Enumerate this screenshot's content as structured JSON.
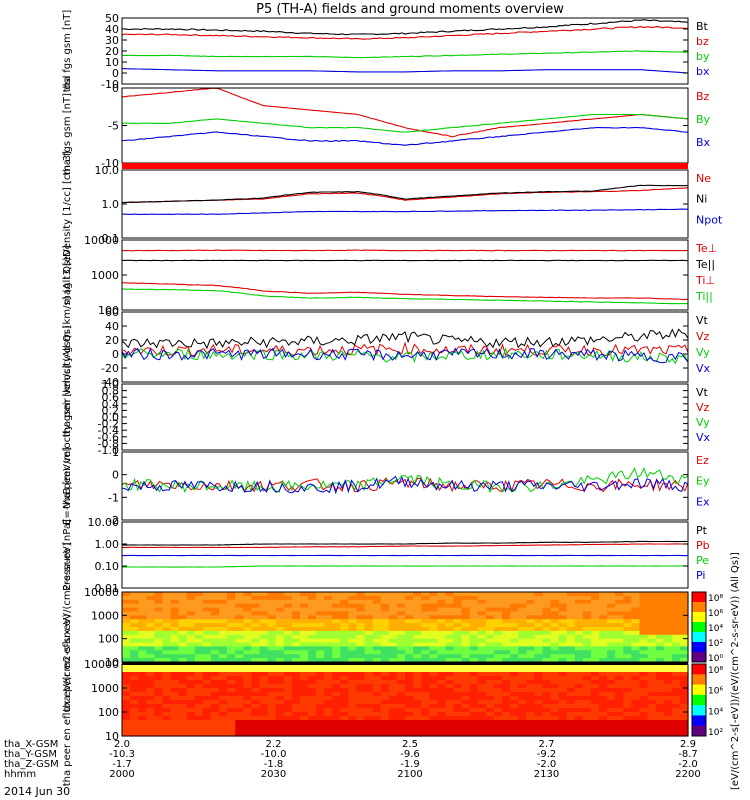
{
  "title": "P5 (TH-A) fields and ground moments overview",
  "colors": {
    "black": "#000000",
    "red": "#e00000",
    "green": "#00d000",
    "blue": "#0000e0"
  },
  "x_axis": {
    "rows": [
      {
        "label": "tha_X-GSM",
        "values": [
          "2.0",
          "2.2",
          "2.5",
          "2.7",
          "2.9"
        ]
      },
      {
        "label": "tha_Y-GSM",
        "values": [
          "-10.3",
          "-10.0",
          "-9.6",
          "-9.2",
          "-8.7"
        ]
      },
      {
        "label": "tha_Z-GSM",
        "values": [
          "-1.7",
          "-1.8",
          "-1.9",
          "-2.0",
          "-2.0"
        ]
      },
      {
        "label": "hhmm",
        "values": [
          "2000",
          "2030",
          "2100",
          "2130",
          "2200"
        ]
      }
    ],
    "date": "2014 Jun 30"
  },
  "colorbar_label": "[eV/(cm^2-s[-eV])/(eV/(cm^2-s-sr-eV)) (All Qs)]",
  "chart_data": [
    {
      "type": "line",
      "ylabel": "tha fgs gsm [nT]",
      "ylim": [
        -10,
        50
      ],
      "ticks": [
        "50",
        "40",
        "30",
        "20",
        "10",
        "0",
        "-10"
      ],
      "legend": [
        "Bt",
        "bz",
        "by",
        "bx"
      ],
      "series": [
        {
          "name": "Bt",
          "values": [
            40,
            40,
            39,
            38,
            36,
            35,
            36,
            38,
            40,
            42,
            45,
            48,
            46
          ]
        },
        {
          "name": "bz",
          "values": [
            35,
            35,
            34,
            33,
            32,
            31,
            32,
            34,
            36,
            38,
            40,
            42,
            41
          ]
        },
        {
          "name": "by",
          "values": [
            16,
            16,
            15,
            15,
            15,
            14,
            15,
            16,
            17,
            18,
            19,
            20,
            19
          ]
        },
        {
          "name": "bx",
          "values": [
            4,
            3,
            2,
            2,
            2,
            1,
            1,
            2,
            2,
            3,
            3,
            3,
            0
          ]
        }
      ]
    },
    {
      "type": "line",
      "ylabel": "tha fgs gsm [nT] dsl",
      "ylim": [
        -12,
        5
      ],
      "ticks": [
        "0",
        "-5",
        "-10"
      ],
      "legend": [
        "Bz",
        "By",
        "Bx"
      ],
      "series": [
        {
          "name": "Bz",
          "values": [
            3,
            4,
            5,
            1,
            0,
            -1,
            -4,
            -6,
            -4,
            -3,
            -2,
            -1,
            -2
          ]
        },
        {
          "name": "By",
          "values": [
            -3,
            -3,
            -2,
            -3,
            -4,
            -4,
            -5,
            -4,
            -3,
            -2,
            -1,
            -1,
            -2
          ]
        },
        {
          "name": "Bx",
          "values": [
            -7,
            -6,
            -5,
            -6,
            -7,
            -7,
            -8,
            -7,
            -6,
            -5,
            -4,
            -4,
            -5
          ]
        }
      ]
    },
    {
      "type": "line",
      "ylabel": "Density [1/cc] [cm-3]",
      "ylim": [
        0.1,
        10
      ],
      "log": true,
      "ticks": [
        "10.0",
        "1.0",
        "0.1"
      ],
      "legend": [
        "Ne",
        "Ni",
        "Npot"
      ],
      "series": [
        {
          "name": "Ne",
          "values": [
            1.1,
            1.2,
            1.3,
            1.4,
            2.0,
            2.1,
            1.3,
            1.6,
            2.0,
            2.2,
            2.3,
            2.5,
            3.0
          ]
        },
        {
          "name": "Ni",
          "values": [
            1.1,
            1.2,
            1.3,
            1.5,
            2.2,
            2.3,
            1.4,
            1.7,
            2.1,
            2.3,
            2.4,
            3.5,
            3.5
          ]
        },
        {
          "name": "Npot",
          "values": [
            0.5,
            0.5,
            0.5,
            0.55,
            0.6,
            0.6,
            0.6,
            0.62,
            0.64,
            0.65,
            0.66,
            0.68,
            0.7
          ]
        }
      ]
    },
    {
      "type": "line",
      "ylabel": "mag t3 [eV]",
      "ylim": [
        100,
        10000
      ],
      "log": true,
      "ticks": [
        "10000",
        "1000",
        "100"
      ],
      "legend": [
        "Te⊥",
        "Te||",
        "Ti⊥",
        "Ti||"
      ],
      "series": [
        {
          "name": "Te⊥",
          "values": [
            5000,
            5000,
            5100,
            5000,
            5000,
            5100,
            5000,
            5000,
            5000,
            5000,
            5000,
            5000,
            5000
          ]
        },
        {
          "name": "Te||",
          "values": [
            2600,
            2600,
            2600,
            2600,
            2600,
            2600,
            2600,
            2600,
            2600,
            2600,
            2600,
            2600,
            2600
          ]
        },
        {
          "name": "Ti⊥",
          "values": [
            600,
            550,
            500,
            350,
            300,
            320,
            280,
            260,
            240,
            230,
            220,
            220,
            200
          ]
        },
        {
          "name": "Ti||",
          "values": [
            400,
            380,
            360,
            250,
            220,
            230,
            210,
            200,
            190,
            180,
            170,
            160,
            150
          ]
        }
      ]
    },
    {
      "type": "line",
      "ylabel": "tha peir velocity gsm [km/s] (All Qs)",
      "ylim": [
        -40,
        60
      ],
      "ticks": [
        "60",
        "40",
        "20",
        "0",
        "-20",
        "-40"
      ],
      "legend": [
        "Vt",
        "Vz",
        "Vy",
        "Vx"
      ],
      "series": [
        {
          "name": "Vt",
          "values": [
            15,
            16,
            15,
            17,
            18,
            20,
            25,
            18,
            17,
            18,
            20,
            25,
            30
          ]
        },
        {
          "name": "Vz",
          "values": [
            5,
            5,
            6,
            5,
            6,
            6,
            8,
            5,
            6,
            5,
            6,
            5,
            5
          ]
        },
        {
          "name": "Vy",
          "values": [
            0,
            0,
            -1,
            0,
            -2,
            -2,
            -5,
            -2,
            0,
            -1,
            -1,
            -5,
            -6
          ]
        },
        {
          "name": "Vx",
          "values": [
            0,
            -1,
            0,
            0,
            0,
            -1,
            -2,
            0,
            0,
            0,
            -1,
            -4,
            -5
          ]
        }
      ]
    },
    {
      "type": "line",
      "ylabel": "tha peer velocity gsm [km/s] (All Qs)",
      "ylim": [
        -1,
        1
      ],
      "ticks": [
        "1.0",
        "0.8",
        "0.6",
        "0.4",
        "0.2",
        "0.0",
        "-0.2",
        "-0.4",
        "-0.6",
        "-0.8",
        "-1.0"
      ],
      "legend": [
        "Vt",
        "Vz",
        "Vy",
        "Vx"
      ],
      "series": []
    },
    {
      "type": "line",
      "ylabel": "E=-VxB [mV/m]",
      "ylim": [
        -2,
        2
      ],
      "ticks": [
        "1",
        "0",
        "-1",
        "-2"
      ],
      "legend": [
        "Ez",
        "Ey",
        "Ex"
      ],
      "series": [
        {
          "name": "Ez",
          "values": [
            0,
            0.1,
            0,
            0,
            0.1,
            0,
            0.2,
            0,
            0,
            0.1,
            0,
            0.1,
            0
          ]
        },
        {
          "name": "Ey",
          "values": [
            0.1,
            0,
            0,
            -0.1,
            0,
            0,
            0.5,
            0,
            0,
            0,
            0.3,
            0.8,
            0.4
          ]
        },
        {
          "name": "Ex",
          "values": [
            0,
            0,
            0,
            0,
            -0.1,
            0,
            0.3,
            0,
            0,
            0,
            0,
            0.2,
            0
          ]
        }
      ]
    },
    {
      "type": "line",
      "ylabel": "Pressure [nPa]",
      "ylim": [
        0.01,
        10
      ],
      "log": true,
      "ticks": [
        "10.00",
        "1.00",
        "0.10",
        "0.01"
      ],
      "legend": [
        "Pt",
        "Pb",
        "Pe",
        "Pi"
      ],
      "series": [
        {
          "name": "Pt",
          "values": [
            0.9,
            0.9,
            0.9,
            1.0,
            1.0,
            1.0,
            1.0,
            1.1,
            1.1,
            1.2,
            1.2,
            1.3,
            1.3
          ]
        },
        {
          "name": "Pb",
          "values": [
            0.7,
            0.7,
            0.7,
            0.7,
            0.75,
            0.75,
            0.8,
            0.8,
            0.85,
            0.9,
            0.95,
            1.0,
            1.0
          ]
        },
        {
          "name": "Pe",
          "values": [
            0.09,
            0.09,
            0.09,
            0.1,
            0.1,
            0.1,
            0.1,
            0.1,
            0.1,
            0.1,
            0.1,
            0.1,
            0.1
          ]
        },
        {
          "name": "Pi",
          "values": [
            0.3,
            0.3,
            0.3,
            0.3,
            0.3,
            0.3,
            0.3,
            0.3,
            0.3,
            0.3,
            0.3,
            0.3,
            0.3
          ]
        }
      ]
    },
    {
      "type": "heatmap",
      "ylabel": "tha peir en eflux eV/(cm2-s-sr-eV)",
      "ylim": [
        5,
        20000
      ],
      "log": true,
      "ticks": [
        "10000",
        "1000",
        "100",
        "10"
      ],
      "colorbar_ticks": [
        "10⁸",
        "10⁶",
        "10⁴",
        "10²",
        "10⁰"
      ]
    },
    {
      "type": "heatmap",
      "ylabel": "tha peer en eflux eV/(cm2-s-sr-eV)",
      "ylim": [
        5,
        20000
      ],
      "log": true,
      "ticks": [
        "10000",
        "1000",
        "100",
        "10"
      ],
      "colorbar_ticks": [
        "10⁸",
        "10⁶",
        "10⁴",
        "10²"
      ]
    }
  ]
}
